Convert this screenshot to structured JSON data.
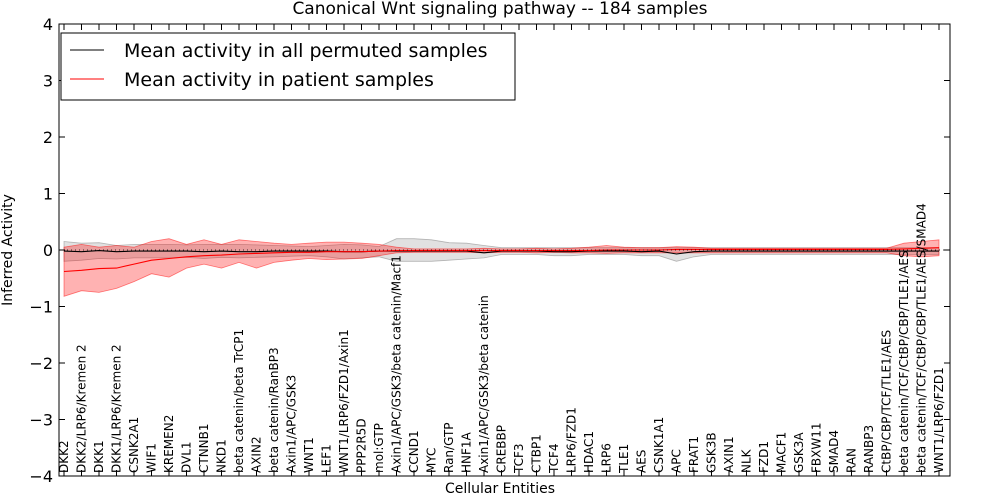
{
  "chart_data": {
    "type": "line",
    "title": "Canonical Wnt signaling pathway -- 184 samples",
    "xlabel": "Cellular Entities",
    "ylabel": "Inferred Activity",
    "ylim": [
      -4,
      4
    ],
    "yticks": [
      -4,
      -3,
      -2,
      -1,
      0,
      1,
      2,
      3,
      4
    ],
    "ytick_labels": [
      "−4",
      "−3",
      "−2",
      "−1",
      "0",
      "1",
      "2",
      "3",
      "4"
    ],
    "legend_position": "top-left",
    "grid": false,
    "categories": [
      "DKK2",
      "DKK2/LRP6/Kremen 2",
      "DKK1",
      "DKK1/LRP6/Kremen 2",
      "CSNK2A1",
      "WIF1",
      "KREMEN2",
      "DVL1",
      "CTNNB1",
      "NKD1",
      "beta catenin/beta TrCP1",
      "AXIN2",
      "beta catenin/RanBP3",
      "Axin1/APC/GSK3",
      "WNT1",
      "LEF1",
      "WNT1/LRP6/FZD1/Axin1",
      "PPP2R5D",
      "mol:GTP",
      "Axin1/APC/GSK3/beta catenin/Macf1",
      "CCND1",
      "MYC",
      "Ran/GTP",
      "HNF1A",
      "Axin1/APC/GSK3/beta catenin",
      "CREBBP",
      "TCF3",
      "CTBP1",
      "TCF4",
      "LRP6/FZD1",
      "HDAC1",
      "LRP6",
      "TLE1",
      "AES",
      "CSNK1A1",
      "APC",
      "FRAT1",
      "GSK3B",
      "AXIN1",
      "NLK",
      "FZD1",
      "MACF1",
      "GSK3A",
      "FBXW11",
      "SMAD4",
      "RAN",
      "RANBP3",
      "CtBP/CBP/TCF/TLE1/AES",
      "beta catenin/TCF/CtBP/CBP/TLE1/AES",
      "beta catenin/TCF/CtBP/CBP/TLE1/AES/SMAD4",
      "WNT1/LRP6/FZD1"
    ],
    "series": [
      {
        "name": "Mean activity in all permuted samples",
        "color": "#000000",
        "values": [
          -0.02,
          -0.03,
          -0.01,
          -0.03,
          -0.02,
          -0.02,
          -0.02,
          -0.02,
          -0.03,
          -0.02,
          -0.03,
          -0.03,
          -0.02,
          -0.02,
          -0.02,
          -0.02,
          -0.03,
          -0.03,
          -0.02,
          -0.02,
          -0.02,
          -0.02,
          -0.02,
          -0.02,
          -0.05,
          -0.02,
          -0.02,
          -0.02,
          -0.03,
          -0.03,
          -0.02,
          -0.02,
          -0.02,
          -0.03,
          -0.02,
          -0.07,
          -0.03,
          -0.02,
          -0.02,
          -0.02,
          -0.02,
          -0.02,
          -0.02,
          -0.02,
          -0.02,
          -0.02,
          -0.02,
          -0.02,
          -0.02,
          -0.02,
          -0.02
        ],
        "band_upper": [
          0.15,
          0.12,
          0.13,
          0.08,
          0.1,
          0.1,
          0.1,
          0.09,
          0.1,
          0.1,
          0.1,
          0.09,
          0.08,
          0.07,
          0.06,
          0.08,
          0.1,
          0.09,
          0.06,
          0.2,
          0.2,
          0.18,
          0.13,
          0.12,
          0.08,
          0.04,
          0.04,
          0.04,
          0.04,
          0.04,
          0.04,
          0.04,
          0.04,
          0.04,
          0.04,
          0.04,
          0.04,
          0.04,
          0.04,
          0.04,
          0.04,
          0.04,
          0.04,
          0.04,
          0.04,
          0.04,
          0.04,
          0.04,
          0.04,
          0.04,
          0.04
        ],
        "band_lower": [
          -0.2,
          -0.18,
          -0.15,
          -0.16,
          -0.14,
          -0.14,
          -0.14,
          -0.13,
          -0.15,
          -0.13,
          -0.14,
          -0.13,
          -0.12,
          -0.11,
          -0.1,
          -0.12,
          -0.16,
          -0.14,
          -0.12,
          -0.2,
          -0.2,
          -0.2,
          -0.18,
          -0.16,
          -0.14,
          -0.08,
          -0.08,
          -0.08,
          -0.1,
          -0.1,
          -0.08,
          -0.08,
          -0.08,
          -0.1,
          -0.1,
          -0.2,
          -0.12,
          -0.08,
          -0.08,
          -0.08,
          -0.08,
          -0.08,
          -0.08,
          -0.08,
          -0.08,
          -0.08,
          -0.08,
          -0.08,
          -0.08,
          -0.08,
          -0.08
        ]
      },
      {
        "name": "Mean activity in patient samples",
        "color": "#ff0000",
        "values": [
          -0.38,
          -0.36,
          -0.33,
          -0.32,
          -0.25,
          -0.18,
          -0.15,
          -0.12,
          -0.1,
          -0.09,
          -0.07,
          -0.06,
          -0.05,
          -0.04,
          -0.04,
          -0.03,
          -0.03,
          -0.03,
          -0.02,
          -0.01,
          -0.01,
          -0.01,
          -0.01,
          -0.01,
          -0.01,
          -0.01,
          -0.01,
          -0.01,
          -0.01,
          -0.01,
          -0.01,
          0.0,
          0.0,
          0.0,
          0.0,
          0.01,
          0.01,
          0.01,
          0.01,
          0.01,
          0.01,
          0.01,
          0.01,
          0.01,
          0.01,
          0.01,
          0.01,
          0.01,
          0.02,
          0.03,
          0.04
        ],
        "band_upper": [
          0.05,
          0.1,
          0.05,
          0.08,
          0.05,
          0.15,
          0.2,
          0.1,
          0.18,
          0.1,
          0.18,
          0.15,
          0.12,
          0.1,
          0.12,
          0.14,
          0.14,
          0.12,
          0.1,
          0.05,
          0.02,
          0.02,
          0.02,
          0.02,
          0.03,
          0.02,
          0.02,
          0.03,
          0.02,
          0.03,
          0.05,
          0.08,
          0.05,
          0.04,
          0.04,
          0.06,
          0.05,
          0.03,
          0.03,
          0.03,
          0.03,
          0.03,
          0.03,
          0.03,
          0.03,
          0.03,
          0.03,
          0.03,
          0.12,
          0.15,
          0.18
        ],
        "band_lower": [
          -0.82,
          -0.72,
          -0.75,
          -0.68,
          -0.56,
          -0.42,
          -0.48,
          -0.32,
          -0.25,
          -0.32,
          -0.22,
          -0.32,
          -0.22,
          -0.18,
          -0.15,
          -0.17,
          -0.16,
          -0.15,
          -0.1,
          -0.05,
          -0.04,
          -0.04,
          -0.04,
          -0.04,
          -0.05,
          -0.04,
          -0.04,
          -0.05,
          -0.04,
          -0.05,
          -0.05,
          -0.06,
          -0.05,
          -0.05,
          -0.05,
          -0.05,
          -0.05,
          -0.05,
          -0.05,
          -0.05,
          -0.05,
          -0.05,
          -0.05,
          -0.05,
          -0.05,
          -0.05,
          -0.05,
          -0.05,
          -0.1,
          -0.12,
          -0.1
        ]
      }
    ]
  }
}
